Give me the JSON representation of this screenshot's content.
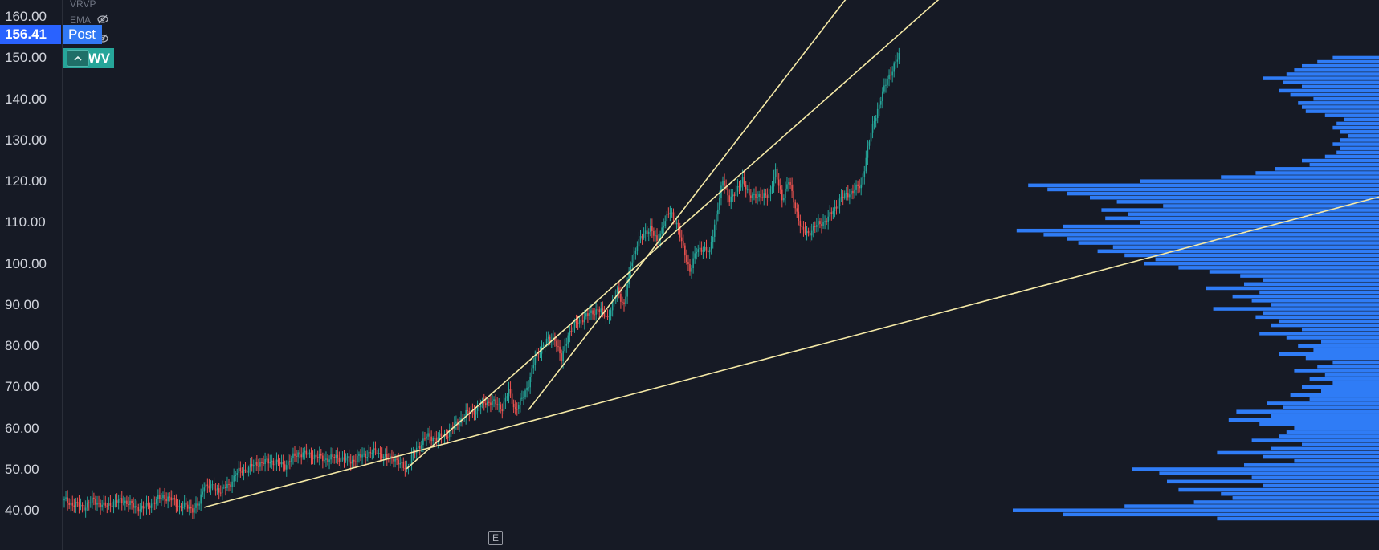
{
  "legend": {
    "indicator_1": "VRVP",
    "indicator_2": "EMA"
  },
  "price_label": {
    "value": "156.41",
    "session": "Post",
    "ticker": "CWV"
  },
  "event_marker": "E",
  "colors": {
    "background": "#161a25",
    "up": "#26a69a",
    "down": "#ef5350",
    "trendline": "#f5e9a6",
    "volume_profile": "#2f7cf6",
    "last_price": "#2962ff"
  },
  "chart_data": {
    "type": "candlestick",
    "y_axis": {
      "range": [
        35,
        160
      ],
      "tick_labels": [
        "160.00",
        "150.00",
        "140.00",
        "130.00",
        "120.00",
        "110.00",
        "100.00",
        "90.00",
        "80.00",
        "70.00",
        "60.00",
        "50.00",
        "40.00"
      ]
    },
    "grid": false,
    "price_path": [
      [
        0,
        42.5
      ],
      [
        6,
        41.5
      ],
      [
        12,
        41
      ],
      [
        18,
        42.5
      ],
      [
        24,
        41
      ],
      [
        30,
        42
      ],
      [
        36,
        42.5
      ],
      [
        42,
        41
      ],
      [
        48,
        40.5
      ],
      [
        54,
        42
      ],
      [
        60,
        43.5
      ],
      [
        66,
        42.5
      ],
      [
        70,
        41
      ],
      [
        74,
        41
      ],
      [
        78,
        40.5
      ],
      [
        82,
        41.5
      ],
      [
        85,
        46.5
      ],
      [
        90,
        45.5
      ],
      [
        95,
        45
      ],
      [
        100,
        46
      ],
      [
        104,
        49
      ],
      [
        110,
        50
      ],
      [
        118,
        51.5
      ],
      [
        126,
        52
      ],
      [
        134,
        51
      ],
      [
        142,
        54
      ],
      [
        150,
        53.5
      ],
      [
        158,
        52.5
      ],
      [
        166,
        53
      ],
      [
        174,
        52
      ],
      [
        182,
        53.5
      ],
      [
        190,
        54.5
      ],
      [
        196,
        52.5
      ],
      [
        200,
        53
      ],
      [
        204,
        51
      ],
      [
        208,
        50.5
      ],
      [
        214,
        55
      ],
      [
        220,
        58
      ],
      [
        226,
        57.5
      ],
      [
        232,
        58.5
      ],
      [
        238,
        61
      ],
      [
        244,
        63.5
      ],
      [
        250,
        64.5
      ],
      [
        256,
        66.5
      ],
      [
        262,
        66
      ],
      [
        266,
        65
      ],
      [
        270,
        69
      ],
      [
        274,
        64.5
      ],
      [
        278,
        67
      ],
      [
        282,
        71
      ],
      [
        286,
        77
      ],
      [
        292,
        81
      ],
      [
        298,
        82
      ],
      [
        302,
        76.5
      ],
      [
        306,
        83
      ],
      [
        312,
        86
      ],
      [
        318,
        87.5
      ],
      [
        324,
        89
      ],
      [
        330,
        87
      ],
      [
        336,
        93.5
      ],
      [
        340,
        90
      ],
      [
        344,
        99.5
      ],
      [
        348,
        105
      ],
      [
        352,
        107
      ],
      [
        356,
        109
      ],
      [
        360,
        105
      ],
      [
        364,
        110
      ],
      [
        368,
        112.5
      ],
      [
        372,
        110
      ],
      [
        376,
        103.5
      ],
      [
        380,
        98.5
      ],
      [
        384,
        103
      ],
      [
        388,
        104
      ],
      [
        392,
        102.5
      ],
      [
        396,
        112
      ],
      [
        400,
        120
      ],
      [
        404,
        116
      ],
      [
        408,
        117
      ],
      [
        412,
        121
      ],
      [
        416,
        116
      ],
      [
        420,
        117
      ],
      [
        424,
        116
      ],
      [
        428,
        117
      ],
      [
        432,
        122
      ],
      [
        436,
        116
      ],
      [
        440,
        120
      ],
      [
        444,
        114
      ],
      [
        448,
        108
      ],
      [
        452,
        107.5
      ],
      [
        456,
        109
      ],
      [
        460,
        110
      ],
      [
        464,
        111
      ],
      [
        468,
        113.5
      ],
      [
        472,
        116
      ],
      [
        476,
        117
      ],
      [
        480,
        118
      ],
      [
        484,
        119
      ],
      [
        488,
        128
      ],
      [
        492,
        135
      ],
      [
        496,
        140
      ],
      [
        500,
        145
      ],
      [
        504,
        148
      ],
      [
        507,
        150.5
      ]
    ],
    "trendlines": [
      {
        "name": "",
        "from": [
          85,
          40.8
        ],
        "to": [
          590,
          94.2
        ],
        "extend": "right"
      },
      {
        "name": "",
        "from": [
          208,
          50.2
        ],
        "to": [
          590,
          185
        ],
        "extend": "right"
      },
      {
        "name": "",
        "from": [
          282,
          64.5
        ],
        "to": [
          590,
          224
        ],
        "extend": "right"
      }
    ],
    "volume_profile": {
      "price_step": 1,
      "levels": [
        [
          38,
          0.42
        ],
        [
          39,
          0.82
        ],
        [
          40,
          0.95
        ],
        [
          41,
          0.66
        ],
        [
          42,
          0.48
        ],
        [
          43,
          0.38
        ],
        [
          44,
          0.41
        ],
        [
          45,
          0.52
        ],
        [
          46,
          0.3
        ],
        [
          47,
          0.55
        ],
        [
          48,
          0.33
        ],
        [
          49,
          0.57
        ],
        [
          50,
          0.64
        ],
        [
          51,
          0.35
        ],
        [
          52,
          0.22
        ],
        [
          53,
          0.3
        ],
        [
          54,
          0.42
        ],
        [
          55,
          0.28
        ],
        [
          56,
          0.2
        ],
        [
          57,
          0.33
        ],
        [
          58,
          0.26
        ],
        [
          59,
          0.24
        ],
        [
          60,
          0.22
        ],
        [
          61,
          0.31
        ],
        [
          62,
          0.39
        ],
        [
          63,
          0.28
        ],
        [
          64,
          0.37
        ],
        [
          65,
          0.25
        ],
        [
          66,
          0.29
        ],
        [
          67,
          0.18
        ],
        [
          68,
          0.23
        ],
        [
          69,
          0.15
        ],
        [
          70,
          0.2
        ],
        [
          71,
          0.12
        ],
        [
          72,
          0.18
        ],
        [
          73,
          0.14
        ],
        [
          74,
          0.22
        ],
        [
          75,
          0.16
        ],
        [
          76,
          0.12
        ],
        [
          77,
          0.19
        ],
        [
          78,
          0.26
        ],
        [
          79,
          0.17
        ],
        [
          80,
          0.21
        ],
        [
          81,
          0.15
        ],
        [
          82,
          0.24
        ],
        [
          83,
          0.31
        ],
        [
          84,
          0.2
        ],
        [
          85,
          0.28
        ],
        [
          86,
          0.26
        ],
        [
          87,
          0.32
        ],
        [
          88,
          0.3
        ],
        [
          89,
          0.43
        ],
        [
          90,
          0.28
        ],
        [
          91,
          0.33
        ],
        [
          92,
          0.38
        ],
        [
          93,
          0.31
        ],
        [
          94,
          0.45
        ],
        [
          95,
          0.35
        ],
        [
          96,
          0.3
        ],
        [
          97,
          0.36
        ],
        [
          98,
          0.44
        ],
        [
          99,
          0.52
        ],
        [
          100,
          0.61
        ],
        [
          101,
          0.58
        ],
        [
          102,
          0.66
        ],
        [
          103,
          0.73
        ],
        [
          104,
          0.69
        ],
        [
          105,
          0.78
        ],
        [
          106,
          0.81
        ],
        [
          107,
          0.87
        ],
        [
          108,
          0.94
        ],
        [
          109,
          0.82
        ],
        [
          110,
          0.62
        ],
        [
          111,
          0.71
        ],
        [
          112,
          0.65
        ],
        [
          113,
          0.72
        ],
        [
          114,
          0.56
        ],
        [
          115,
          0.68
        ],
        [
          116,
          0.75
        ],
        [
          117,
          0.81
        ],
        [
          118,
          0.86
        ],
        [
          119,
          0.91
        ],
        [
          120,
          0.62
        ],
        [
          121,
          0.41
        ],
        [
          122,
          0.32
        ],
        [
          123,
          0.27
        ],
        [
          124,
          0.18
        ],
        [
          125,
          0.2
        ],
        [
          126,
          0.14
        ],
        [
          127,
          0.11
        ],
        [
          128,
          0.1
        ],
        [
          129,
          0.12
        ],
        [
          130,
          0.1
        ],
        [
          131,
          0.08
        ],
        [
          132,
          0.1
        ],
        [
          133,
          0.12
        ],
        [
          134,
          0.11
        ],
        [
          135,
          0.09
        ],
        [
          136,
          0.14
        ],
        [
          137,
          0.19
        ],
        [
          138,
          0.2
        ],
        [
          139,
          0.21
        ],
        [
          140,
          0.17
        ],
        [
          141,
          0.23
        ],
        [
          142,
          0.26
        ],
        [
          143,
          0.2
        ],
        [
          144,
          0.25
        ],
        [
          145,
          0.3
        ],
        [
          146,
          0.24
        ],
        [
          147,
          0.22
        ],
        [
          148,
          0.2
        ],
        [
          149,
          0.16
        ],
        [
          150,
          0.12
        ]
      ]
    }
  }
}
